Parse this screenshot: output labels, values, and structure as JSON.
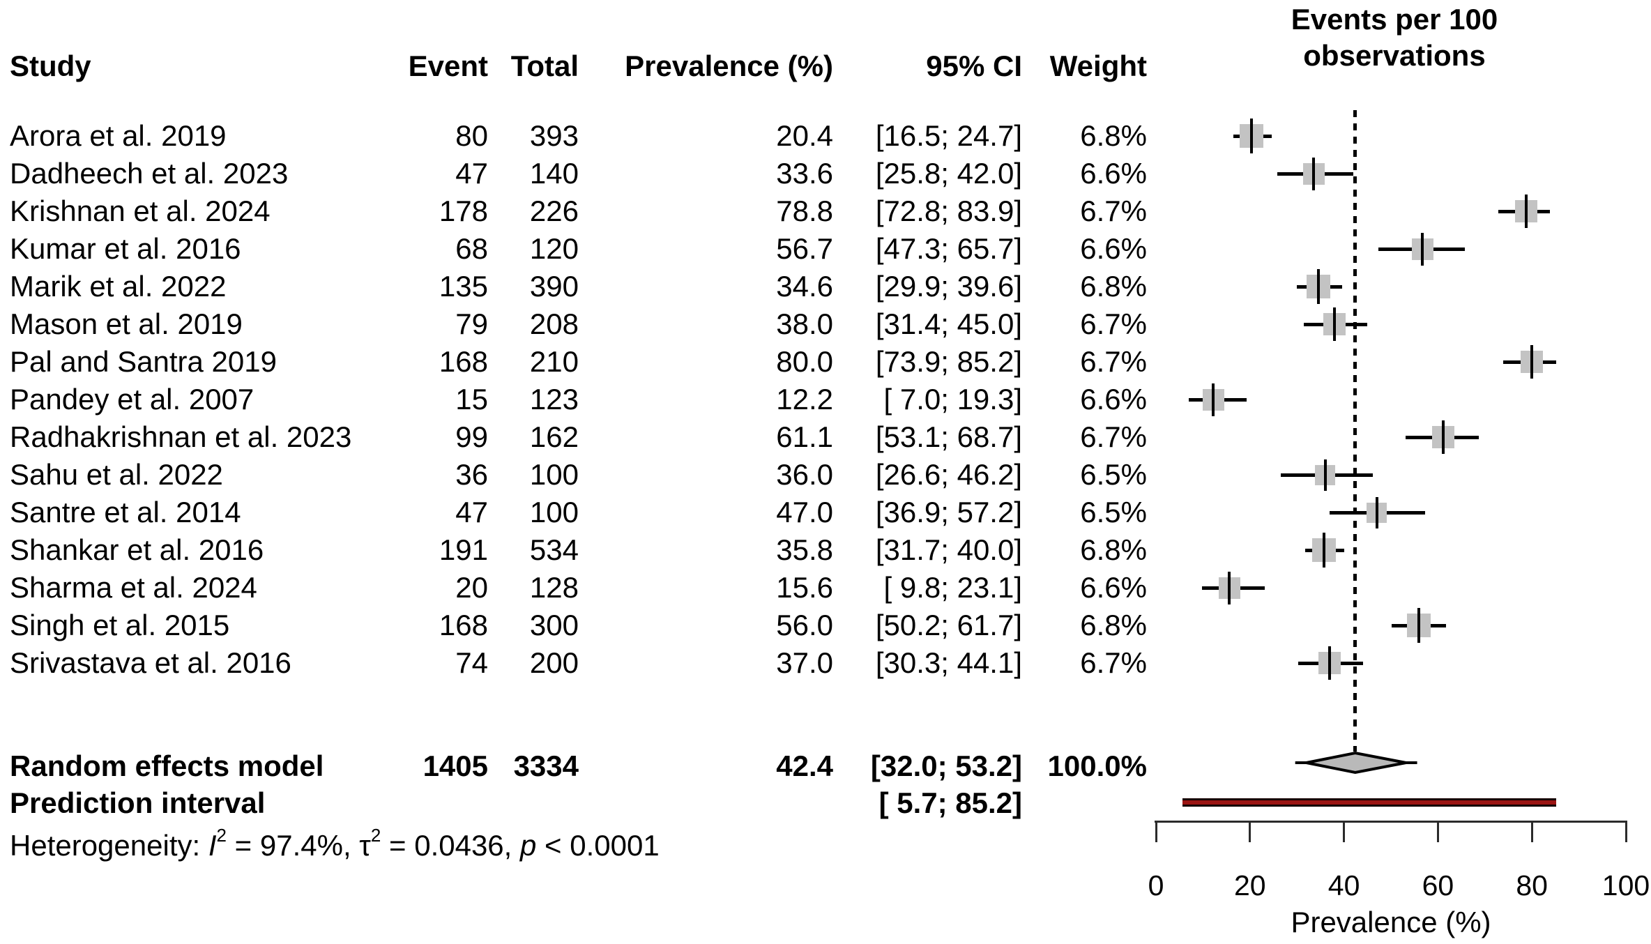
{
  "labels": {
    "col_study": "Study",
    "col_event": "Event",
    "col_total": "Total",
    "col_prevalence": "Prevalence (%)",
    "col_ci": "95% CI",
    "col_weight": "Weight",
    "plot_header_line1": "Events per 100",
    "plot_header_line2": "observations",
    "axis_title": "Prevalence (%)"
  },
  "heterogeneity_text": {
    "prefix": "Heterogeneity: ",
    "i_symbol": "I",
    "i_sup": "2",
    "seg1": " = 97.4%, ",
    "tau_symbol": "τ",
    "tau_sup": "2",
    "seg2": " = 0.0436, ",
    "p_symbol": "p",
    "seg3": " < 0.0001"
  },
  "colors": {
    "marker_square": "#c3c3c3",
    "diamond_fill": "#b9b9b9",
    "diamond_stroke": "#000000",
    "prediction_bar": "#9b1513",
    "line": "#000000",
    "axis": "#2b2b2b",
    "text": "#000000"
  },
  "chart_data": {
    "type": "forest",
    "title": "Events per 100 observations",
    "xlabel": "Prevalence (%)",
    "xlim": [
      0,
      100
    ],
    "xticks": [
      0,
      20,
      40,
      60,
      80,
      100
    ],
    "reference_line": 42.4,
    "columns": [
      "Study",
      "Event",
      "Total",
      "Prevalence (%)",
      "95% CI",
      "Weight"
    ],
    "studies": [
      {
        "name": "Arora et al. 2019",
        "event": 80,
        "total": 393,
        "prevalence": 20.4,
        "ci": [
          16.5,
          24.7
        ],
        "weight": 6.8
      },
      {
        "name": "Dadheech et al. 2023",
        "event": 47,
        "total": 140,
        "prevalence": 33.6,
        "ci": [
          25.8,
          42.0
        ],
        "weight": 6.6
      },
      {
        "name": "Krishnan et al. 2024",
        "event": 178,
        "total": 226,
        "prevalence": 78.8,
        "ci": [
          72.8,
          83.9
        ],
        "weight": 6.7
      },
      {
        "name": "Kumar et al. 2016",
        "event": 68,
        "total": 120,
        "prevalence": 56.7,
        "ci": [
          47.3,
          65.7
        ],
        "weight": 6.6
      },
      {
        "name": "Marik et al. 2022",
        "event": 135,
        "total": 390,
        "prevalence": 34.6,
        "ci": [
          29.9,
          39.6
        ],
        "weight": 6.8
      },
      {
        "name": "Mason et al. 2019",
        "event": 79,
        "total": 208,
        "prevalence": 38.0,
        "ci": [
          31.4,
          45.0
        ],
        "weight": 6.7
      },
      {
        "name": "Pal and Santra 2019",
        "event": 168,
        "total": 210,
        "prevalence": 80.0,
        "ci": [
          73.9,
          85.2
        ],
        "weight": 6.7
      },
      {
        "name": "Pandey et al. 2007",
        "event": 15,
        "total": 123,
        "prevalence": 12.2,
        "ci": [
          7.0,
          19.3
        ],
        "weight": 6.6
      },
      {
        "name": "Radhakrishnan et al. 2023",
        "event": 99,
        "total": 162,
        "prevalence": 61.1,
        "ci": [
          53.1,
          68.7
        ],
        "weight": 6.7
      },
      {
        "name": "Sahu et al. 2022",
        "event": 36,
        "total": 100,
        "prevalence": 36.0,
        "ci": [
          26.6,
          46.2
        ],
        "weight": 6.5
      },
      {
        "name": "Santre et al. 2014",
        "event": 47,
        "total": 100,
        "prevalence": 47.0,
        "ci": [
          36.9,
          57.2
        ],
        "weight": 6.5
      },
      {
        "name": "Shankar et al. 2016",
        "event": 191,
        "total": 534,
        "prevalence": 35.8,
        "ci": [
          31.7,
          40.0
        ],
        "weight": 6.8
      },
      {
        "name": "Sharma et al. 2024",
        "event": 20,
        "total": 128,
        "prevalence": 15.6,
        "ci": [
          9.8,
          23.1
        ],
        "weight": 6.6
      },
      {
        "name": "Singh et al. 2015",
        "event": 168,
        "total": 300,
        "prevalence": 56.0,
        "ci": [
          50.2,
          61.7
        ],
        "weight": 6.8
      },
      {
        "name": "Srivastava et al. 2016",
        "event": 74,
        "total": 200,
        "prevalence": 37.0,
        "ci": [
          30.3,
          44.1
        ],
        "weight": 6.7
      }
    ],
    "summary": {
      "name": "Random effects model",
      "event": 1405,
      "total": 3334,
      "prevalence": 42.4,
      "ci": [
        32.0,
        53.2
      ],
      "weight": 100.0
    },
    "prediction_interval": {
      "name": "Prediction interval",
      "ci": [
        5.7,
        85.2
      ]
    },
    "heterogeneity": {
      "I2": "97.4%",
      "tau2": "0.0436",
      "p": "< 0.0001"
    },
    "legend_position": "none",
    "grid": false
  }
}
